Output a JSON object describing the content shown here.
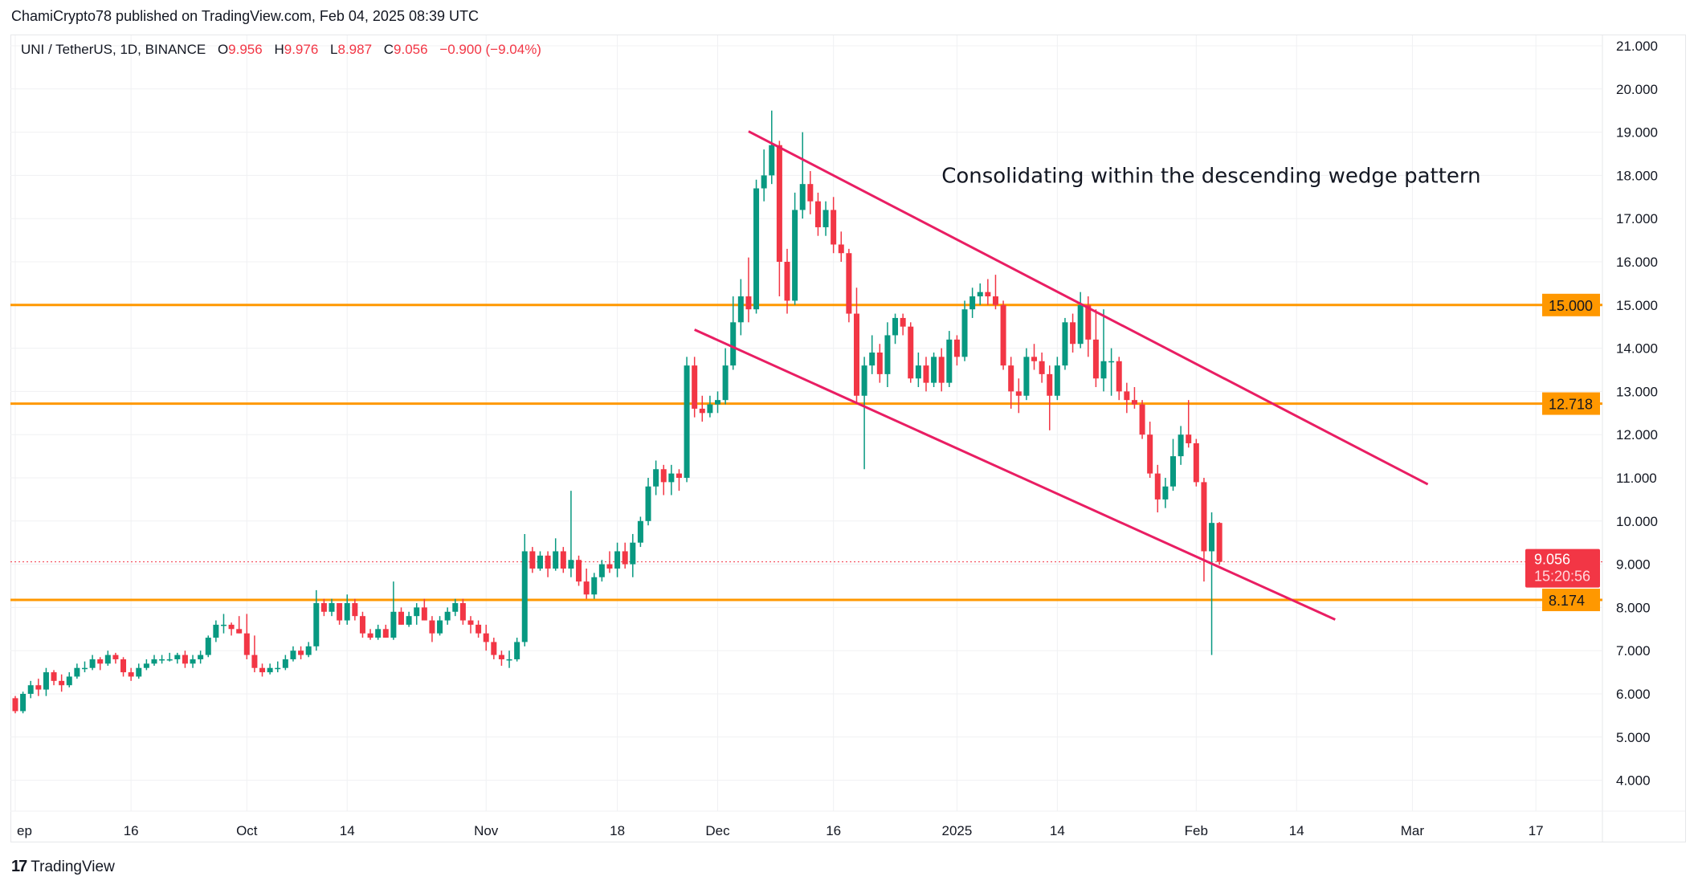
{
  "header": {
    "published": "ChamiCrypto78 published on TradingView.com, Feb 04, 2025 08:39 UTC"
  },
  "legend": {
    "symbol": "UNI / TetherUS, 1D, BINANCE",
    "o_label": "O",
    "o": "9.956",
    "h_label": "H",
    "h": "9.976",
    "l_label": "L",
    "l": "8.987",
    "c_label": "C",
    "c": "9.056",
    "change": "−0.900 (−9.04%)"
  },
  "footer": {
    "brand": "TradingView",
    "logo_icon": "tradingview-logo-icon"
  },
  "colors": {
    "up": "#089981",
    "down": "#F23645",
    "level": "#FF9800",
    "wedge": "#E91E63",
    "grid": "#f0f1f3"
  },
  "chart_data": {
    "type": "candlestick",
    "title": "",
    "grid": true,
    "ylim": [
      3.5,
      21.3
    ],
    "price_ticks": [
      "21.000",
      "20.000",
      "19.000",
      "18.000",
      "17.000",
      "16.000",
      "15.000",
      "14.000",
      "13.000",
      "12.000",
      "11.000",
      "10.000",
      "9.000",
      "8.000",
      "7.000",
      "6.000",
      "5.000",
      "4.000"
    ],
    "time_ticks": [
      {
        "date": "2024-09-01",
        "label": "ep"
      },
      {
        "date": "2024-09-16",
        "label": "16"
      },
      {
        "date": "2024-10-01",
        "label": "Oct"
      },
      {
        "date": "2024-10-14",
        "label": "14"
      },
      {
        "date": "2024-11-01",
        "label": "Nov"
      },
      {
        "date": "2024-11-18",
        "label": "18"
      },
      {
        "date": "2024-12-01",
        "label": "Dec"
      },
      {
        "date": "2024-12-16",
        "label": "16"
      },
      {
        "date": "2025-01-01",
        "label": "2025"
      },
      {
        "date": "2025-01-14",
        "label": "14"
      },
      {
        "date": "2025-02-01",
        "label": "Feb"
      },
      {
        "date": "2025-02-14",
        "label": "14"
      },
      {
        "date": "2025-03-01",
        "label": "Mar"
      },
      {
        "date": "2025-03-17",
        "label": "17"
      }
    ],
    "candles_columns": [
      "date",
      "open",
      "high",
      "low",
      "close"
    ],
    "candles": [
      [
        "2024-09-01",
        5.9,
        5.95,
        5.55,
        5.6
      ],
      [
        "2024-09-02",
        5.6,
        6.05,
        5.55,
        6.0
      ],
      [
        "2024-09-03",
        6.0,
        6.3,
        5.9,
        6.2
      ],
      [
        "2024-09-04",
        6.2,
        6.35,
        5.95,
        6.1
      ],
      [
        "2024-09-05",
        6.1,
        6.6,
        5.95,
        6.5
      ],
      [
        "2024-09-06",
        6.5,
        6.55,
        6.2,
        6.3
      ],
      [
        "2024-09-07",
        6.3,
        6.45,
        6.05,
        6.2
      ],
      [
        "2024-09-08",
        6.2,
        6.5,
        6.15,
        6.4
      ],
      [
        "2024-09-09",
        6.4,
        6.7,
        6.35,
        6.6
      ],
      [
        "2024-09-10",
        6.6,
        6.75,
        6.5,
        6.6
      ],
      [
        "2024-09-11",
        6.6,
        6.9,
        6.55,
        6.8
      ],
      [
        "2024-09-12",
        6.8,
        6.85,
        6.55,
        6.7
      ],
      [
        "2024-09-13",
        6.7,
        7.0,
        6.65,
        6.9
      ],
      [
        "2024-09-14",
        6.9,
        6.95,
        6.7,
        6.8
      ],
      [
        "2024-09-15",
        6.8,
        6.85,
        6.4,
        6.5
      ],
      [
        "2024-09-16",
        6.5,
        6.6,
        6.3,
        6.4
      ],
      [
        "2024-09-17",
        6.4,
        6.7,
        6.35,
        6.6
      ],
      [
        "2024-09-18",
        6.6,
        6.8,
        6.55,
        6.7
      ],
      [
        "2024-09-19",
        6.7,
        6.9,
        6.65,
        6.8
      ],
      [
        "2024-09-20",
        6.8,
        6.9,
        6.7,
        6.8
      ],
      [
        "2024-09-21",
        6.8,
        6.95,
        6.75,
        6.8
      ],
      [
        "2024-09-22",
        6.8,
        6.95,
        6.7,
        6.9
      ],
      [
        "2024-09-23",
        6.9,
        7.0,
        6.6,
        6.7
      ],
      [
        "2024-09-24",
        6.7,
        6.9,
        6.6,
        6.8
      ],
      [
        "2024-09-25",
        6.8,
        7.0,
        6.7,
        6.9
      ],
      [
        "2024-09-26",
        6.9,
        7.35,
        6.85,
        7.3
      ],
      [
        "2024-09-27",
        7.3,
        7.7,
        7.2,
        7.6
      ],
      [
        "2024-09-28",
        7.6,
        7.85,
        7.4,
        7.6
      ],
      [
        "2024-09-29",
        7.6,
        7.65,
        7.35,
        7.5
      ],
      [
        "2024-09-30",
        7.5,
        7.8,
        7.4,
        7.4
      ],
      [
        "2024-10-01",
        7.4,
        7.85,
        6.8,
        6.9
      ],
      [
        "2024-10-02",
        6.9,
        7.35,
        6.5,
        6.6
      ],
      [
        "2024-10-03",
        6.6,
        6.7,
        6.4,
        6.5
      ],
      [
        "2024-10-04",
        6.5,
        6.7,
        6.45,
        6.6
      ],
      [
        "2024-10-05",
        6.6,
        6.75,
        6.5,
        6.6
      ],
      [
        "2024-10-06",
        6.6,
        6.9,
        6.55,
        6.8
      ],
      [
        "2024-10-07",
        6.8,
        7.1,
        6.75,
        7.0
      ],
      [
        "2024-10-08",
        7.0,
        7.1,
        6.8,
        6.9
      ],
      [
        "2024-10-09",
        6.9,
        7.2,
        6.85,
        7.1
      ],
      [
        "2024-10-10",
        7.1,
        8.4,
        7.0,
        8.1
      ],
      [
        "2024-10-11",
        8.1,
        8.2,
        7.8,
        7.9
      ],
      [
        "2024-10-12",
        7.9,
        8.2,
        7.8,
        8.1
      ],
      [
        "2024-10-13",
        8.1,
        8.1,
        7.6,
        7.7
      ],
      [
        "2024-10-14",
        7.7,
        8.3,
        7.6,
        8.1
      ],
      [
        "2024-10-15",
        8.1,
        8.2,
        7.7,
        7.8
      ],
      [
        "2024-10-16",
        7.8,
        7.9,
        7.3,
        7.4
      ],
      [
        "2024-10-17",
        7.4,
        7.5,
        7.25,
        7.3
      ],
      [
        "2024-10-18",
        7.3,
        7.6,
        7.25,
        7.5
      ],
      [
        "2024-10-19",
        7.5,
        7.6,
        7.3,
        7.3
      ],
      [
        "2024-10-20",
        7.3,
        8.6,
        7.25,
        7.9
      ],
      [
        "2024-10-21",
        7.9,
        8.0,
        7.6,
        7.6
      ],
      [
        "2024-10-22",
        7.6,
        7.9,
        7.55,
        7.8
      ],
      [
        "2024-10-23",
        7.8,
        8.1,
        7.6,
        8.0
      ],
      [
        "2024-10-24",
        8.0,
        8.2,
        7.7,
        7.7
      ],
      [
        "2024-10-25",
        7.7,
        7.8,
        7.2,
        7.4
      ],
      [
        "2024-10-26",
        7.4,
        7.8,
        7.35,
        7.7
      ],
      [
        "2024-10-27",
        7.7,
        8.0,
        7.6,
        7.9
      ],
      [
        "2024-10-28",
        7.9,
        8.2,
        7.8,
        8.1
      ],
      [
        "2024-10-29",
        8.1,
        8.2,
        7.6,
        7.7
      ],
      [
        "2024-10-30",
        7.7,
        7.8,
        7.4,
        7.6
      ],
      [
        "2024-10-31",
        7.6,
        7.7,
        7.3,
        7.4
      ],
      [
        "2024-11-01",
        7.4,
        7.6,
        7.0,
        7.2
      ],
      [
        "2024-11-02",
        7.2,
        7.3,
        6.8,
        6.9
      ],
      [
        "2024-11-03",
        6.9,
        7.0,
        6.65,
        6.8
      ],
      [
        "2024-11-04",
        6.8,
        7.0,
        6.6,
        6.8
      ],
      [
        "2024-11-05",
        6.8,
        7.3,
        6.75,
        7.2
      ],
      [
        "2024-11-06",
        7.2,
        9.7,
        7.1,
        9.3
      ],
      [
        "2024-11-07",
        9.3,
        9.4,
        8.8,
        8.9
      ],
      [
        "2024-11-08",
        8.9,
        9.3,
        8.85,
        9.2
      ],
      [
        "2024-11-09",
        9.2,
        9.3,
        8.7,
        8.9
      ],
      [
        "2024-11-10",
        8.9,
        9.6,
        8.85,
        9.3
      ],
      [
        "2024-11-11",
        9.3,
        9.4,
        8.8,
        8.9
      ],
      [
        "2024-11-12",
        8.9,
        10.7,
        8.7,
        9.1
      ],
      [
        "2024-11-13",
        9.1,
        9.2,
        8.5,
        8.6
      ],
      [
        "2024-11-14",
        8.6,
        8.9,
        8.2,
        8.3
      ],
      [
        "2024-11-15",
        8.3,
        8.8,
        8.2,
        8.7
      ],
      [
        "2024-11-16",
        8.7,
        9.1,
        8.6,
        9.0
      ],
      [
        "2024-11-17",
        9.0,
        9.3,
        8.8,
        8.9
      ],
      [
        "2024-11-18",
        8.9,
        9.5,
        8.7,
        9.3
      ],
      [
        "2024-11-19",
        9.3,
        9.5,
        8.9,
        9.0
      ],
      [
        "2024-11-20",
        9.0,
        9.7,
        8.7,
        9.5
      ],
      [
        "2024-11-21",
        9.5,
        10.1,
        9.4,
        10.0
      ],
      [
        "2024-11-22",
        10.0,
        11.0,
        9.9,
        10.8
      ],
      [
        "2024-11-23",
        10.8,
        11.4,
        10.6,
        11.2
      ],
      [
        "2024-11-24",
        11.2,
        11.3,
        10.6,
        10.9
      ],
      [
        "2024-11-25",
        10.9,
        11.3,
        10.6,
        11.1
      ],
      [
        "2024-11-26",
        11.1,
        11.2,
        10.7,
        11.0
      ],
      [
        "2024-11-27",
        11.0,
        13.8,
        10.9,
        13.6
      ],
      [
        "2024-11-28",
        13.6,
        13.8,
        12.4,
        12.6
      ],
      [
        "2024-11-29",
        12.6,
        12.9,
        12.3,
        12.5
      ],
      [
        "2024-11-30",
        12.5,
        12.9,
        12.4,
        12.7
      ],
      [
        "2024-12-01",
        12.7,
        13.0,
        12.5,
        12.8
      ],
      [
        "2024-12-02",
        12.8,
        14.0,
        12.7,
        13.6
      ],
      [
        "2024-12-03",
        13.6,
        15.2,
        13.5,
        14.6
      ],
      [
        "2024-12-04",
        14.6,
        15.6,
        14.3,
        15.2
      ],
      [
        "2024-12-05",
        15.2,
        16.1,
        14.6,
        14.9
      ],
      [
        "2024-12-06",
        14.9,
        17.9,
        14.8,
        17.7
      ],
      [
        "2024-12-07",
        17.7,
        18.6,
        17.4,
        18.0
      ],
      [
        "2024-12-08",
        18.0,
        19.5,
        17.8,
        18.7
      ],
      [
        "2024-12-09",
        18.7,
        18.8,
        15.2,
        16.0
      ],
      [
        "2024-12-10",
        16.0,
        16.3,
        14.8,
        15.1
      ],
      [
        "2024-12-11",
        15.1,
        17.6,
        15.0,
        17.2
      ],
      [
        "2024-12-12",
        17.2,
        19.0,
        17.0,
        17.8
      ],
      [
        "2024-12-13",
        17.8,
        18.1,
        17.1,
        17.4
      ],
      [
        "2024-12-14",
        17.4,
        17.6,
        16.6,
        16.8
      ],
      [
        "2024-12-15",
        16.8,
        17.4,
        16.6,
        17.2
      ],
      [
        "2024-12-16",
        17.2,
        17.5,
        16.2,
        16.4
      ],
      [
        "2024-12-17",
        16.4,
        16.7,
        16.0,
        16.2
      ],
      [
        "2024-12-18",
        16.2,
        16.3,
        14.6,
        14.8
      ],
      [
        "2024-12-19",
        14.8,
        15.4,
        12.7,
        12.9
      ],
      [
        "2024-12-20",
        12.9,
        13.8,
        11.2,
        13.6
      ],
      [
        "2024-12-21",
        13.6,
        14.3,
        13.4,
        13.9
      ],
      [
        "2024-12-22",
        13.9,
        14.1,
        13.2,
        13.4
      ],
      [
        "2024-12-23",
        13.4,
        14.6,
        13.1,
        14.3
      ],
      [
        "2024-12-24",
        14.3,
        14.8,
        14.1,
        14.7
      ],
      [
        "2024-12-25",
        14.7,
        14.8,
        14.3,
        14.5
      ],
      [
        "2024-12-26",
        14.5,
        14.6,
        13.2,
        13.3
      ],
      [
        "2024-12-27",
        13.3,
        13.9,
        13.1,
        13.6
      ],
      [
        "2024-12-28",
        13.6,
        13.8,
        13.0,
        13.2
      ],
      [
        "2024-12-29",
        13.2,
        13.9,
        13.1,
        13.8
      ],
      [
        "2024-12-30",
        13.8,
        14.0,
        13.0,
        13.2
      ],
      [
        "2024-12-31",
        13.2,
        14.4,
        13.1,
        14.2
      ],
      [
        "2025-01-01",
        14.2,
        14.3,
        13.6,
        13.8
      ],
      [
        "2025-01-02",
        13.8,
        15.1,
        13.7,
        14.9
      ],
      [
        "2025-01-03",
        14.9,
        15.4,
        14.7,
        15.2
      ],
      [
        "2025-01-04",
        15.2,
        15.5,
        15.0,
        15.3
      ],
      [
        "2025-01-05",
        15.3,
        15.6,
        15.0,
        15.2
      ],
      [
        "2025-01-06",
        15.2,
        15.7,
        14.9,
        15.0
      ],
      [
        "2025-01-07",
        15.0,
        15.1,
        13.5,
        13.6
      ],
      [
        "2025-01-08",
        13.6,
        13.8,
        12.6,
        13.0
      ],
      [
        "2025-01-09",
        13.0,
        13.3,
        12.5,
        12.9
      ],
      [
        "2025-01-10",
        12.9,
        14.0,
        12.8,
        13.8
      ],
      [
        "2025-01-11",
        13.8,
        14.1,
        13.5,
        13.7
      ],
      [
        "2025-01-12",
        13.7,
        13.9,
        13.2,
        13.4
      ],
      [
        "2025-01-13",
        13.4,
        13.6,
        12.1,
        12.9
      ],
      [
        "2025-01-14",
        12.9,
        13.8,
        12.8,
        13.6
      ],
      [
        "2025-01-15",
        13.6,
        14.7,
        13.5,
        14.6
      ],
      [
        "2025-01-16",
        14.6,
        14.8,
        13.9,
        14.1
      ],
      [
        "2025-01-17",
        14.1,
        15.3,
        14.0,
        15.0
      ],
      [
        "2025-01-18",
        15.0,
        15.2,
        13.8,
        14.2
      ],
      [
        "2025-01-19",
        14.2,
        14.9,
        13.1,
        13.3
      ],
      [
        "2025-01-20",
        13.3,
        14.9,
        13.0,
        13.7
      ],
      [
        "2025-01-21",
        13.7,
        14.0,
        12.9,
        13.7
      ],
      [
        "2025-01-22",
        13.7,
        13.8,
        12.8,
        13.0
      ],
      [
        "2025-01-23",
        13.0,
        13.2,
        12.5,
        12.8
      ],
      [
        "2025-01-24",
        12.8,
        13.1,
        12.6,
        12.7
      ],
      [
        "2025-01-25",
        12.7,
        12.8,
        11.9,
        12.0
      ],
      [
        "2025-01-26",
        12.0,
        12.3,
        11.0,
        11.1
      ],
      [
        "2025-01-27",
        11.1,
        11.3,
        10.2,
        10.5
      ],
      [
        "2025-01-28",
        10.5,
        11.0,
        10.3,
        10.8
      ],
      [
        "2025-01-29",
        10.8,
        11.9,
        10.7,
        11.5
      ],
      [
        "2025-01-30",
        11.5,
        12.2,
        11.3,
        12.0
      ],
      [
        "2025-01-31",
        12.0,
        12.8,
        11.7,
        11.8
      ],
      [
        "2025-02-01",
        11.8,
        11.9,
        10.8,
        10.9
      ],
      [
        "2025-02-02",
        10.9,
        11.0,
        8.6,
        9.3
      ],
      [
        "2025-02-03",
        9.3,
        10.2,
        6.9,
        9.956
      ],
      [
        "2025-02-04",
        9.956,
        9.976,
        8.987,
        9.056
      ]
    ],
    "horizontal_levels": [
      {
        "price": 15.0,
        "label": "15.000"
      },
      {
        "price": 12.718,
        "label": "12.718"
      },
      {
        "price": 8.174,
        "label": "8.174"
      }
    ],
    "last_price": {
      "price": 9.056,
      "label": "9.056",
      "countdown": "15:20:56"
    },
    "trendlines": [
      {
        "name": "upper-wedge",
        "from": {
          "date": "2024-12-05",
          "price": 19.02
        },
        "to": {
          "date": "2025-03-03",
          "price": 10.85
        }
      },
      {
        "name": "lower-wedge",
        "from": {
          "date": "2024-11-28",
          "price": 14.43
        },
        "to": {
          "date": "2025-02-19",
          "price": 7.72
        }
      }
    ],
    "annotation": {
      "text": "Consolidating within the descending wedge pattern",
      "date": "2024-12-30",
      "price": 18.0
    }
  }
}
